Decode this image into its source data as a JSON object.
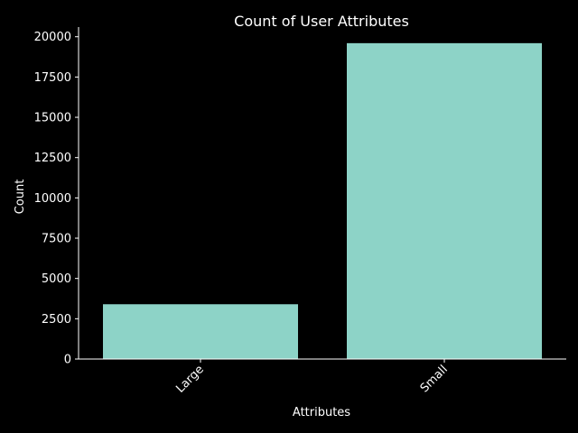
{
  "colors": {
    "background": "#000000",
    "foreground": "#ffffff",
    "bar": "#8dd3c7"
  },
  "chart_data": {
    "type": "bar",
    "title": "Count of User Attributes",
    "xlabel": "Attributes",
    "ylabel": "Count",
    "categories": [
      "Large",
      "Small"
    ],
    "values": [
      3400,
      19600
    ],
    "ylim": [
      0,
      20600
    ],
    "yticks": [
      0,
      2500,
      5000,
      7500,
      10000,
      12500,
      15000,
      17500,
      20000
    ],
    "ytick_labels": [
      "0",
      "2500",
      "5000",
      "7500",
      "10000",
      "12500",
      "15000",
      "17500",
      "20000"
    ],
    "xtick_rotation": 45,
    "grid": false,
    "legend": "none"
  }
}
